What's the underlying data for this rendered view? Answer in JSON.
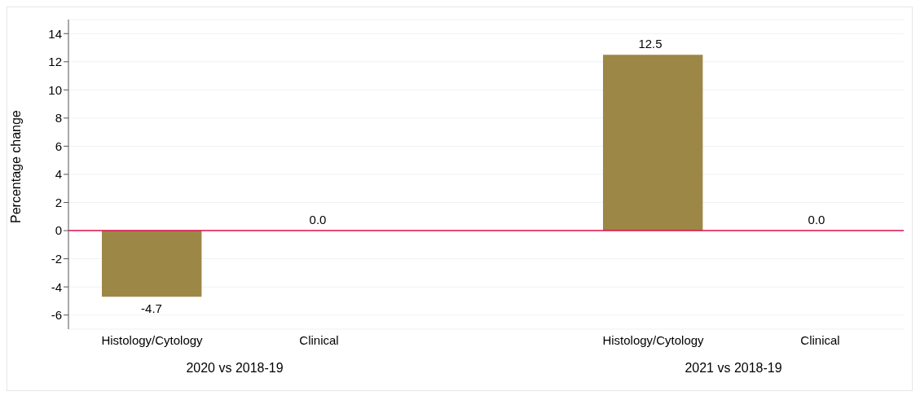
{
  "chart_data": {
    "type": "bar",
    "ylabel": "Percentage change",
    "categories": [
      "Histology/Cytology",
      "Clinical",
      null,
      "Histology/Cytology",
      "Clinical"
    ],
    "values": [
      -4.7,
      0,
      null,
      12.5,
      0
    ],
    "color": "#9c8746",
    "value_labels": [
      "-4.7",
      "0.0",
      null,
      "12.5",
      "0.0"
    ],
    "ylim": [
      -7,
      15
    ],
    "yticks": [
      -6,
      -4,
      -2,
      0,
      2,
      4,
      6,
      8,
      10,
      12,
      14
    ],
    "grid": "y",
    "ref_lines": [
      {
        "axis": "y",
        "value": 0,
        "color": "#e0104d"
      }
    ],
    "annotations": [
      "2020 vs 2018-19",
      "2021 vs 2018-19"
    ]
  }
}
